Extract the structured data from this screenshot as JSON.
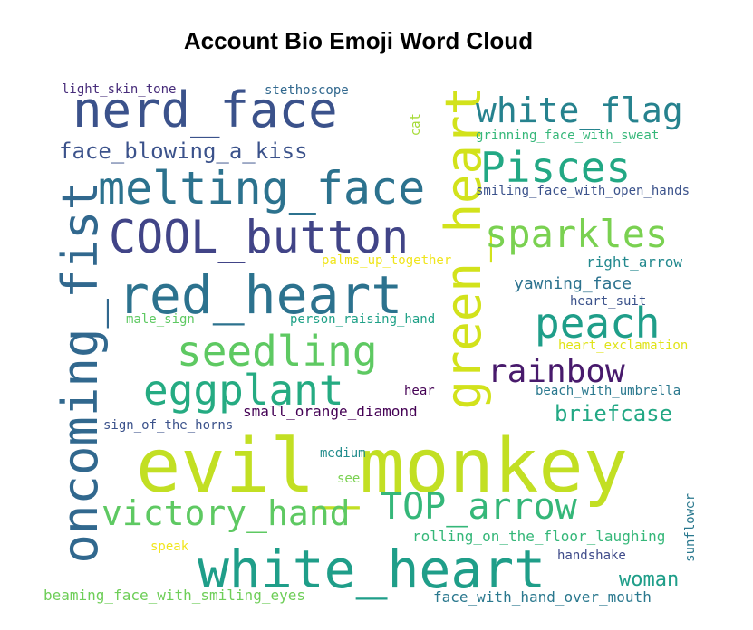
{
  "title": "Account Bio Emoji Word Cloud",
  "words": [
    {
      "text": "evil_monkey",
      "color": "#c2df23"
    },
    {
      "text": "white_heart",
      "color": "#1f9e89"
    },
    {
      "text": "nerd_face",
      "color": "#3b528b"
    },
    {
      "text": "melting_face",
      "color": "#2c728e"
    },
    {
      "text": "COOL_button",
      "color": "#414487"
    },
    {
      "text": "red_heart",
      "color": "#2c728e"
    },
    {
      "text": "oncoming_fist",
      "color": "#31688e"
    },
    {
      "text": "green_heart",
      "color": "#d2e21b"
    },
    {
      "text": "white_flag",
      "color": "#26828e"
    },
    {
      "text": "Pisces",
      "color": "#22a884"
    },
    {
      "text": "sparkles",
      "color": "#7ad151"
    },
    {
      "text": "peach",
      "color": "#1f9e89"
    },
    {
      "text": "seedling",
      "color": "#5ec962"
    },
    {
      "text": "eggplant",
      "color": "#25ab82"
    },
    {
      "text": "rainbow",
      "color": "#481a6c"
    },
    {
      "text": "victory_hand",
      "color": "#5ec962"
    },
    {
      "text": "TOP_arrow",
      "color": "#35b779"
    },
    {
      "text": "face_blowing_a_kiss",
      "color": "#3b528b"
    },
    {
      "text": "briefcase",
      "color": "#22a884"
    },
    {
      "text": "woman",
      "color": "#1f9e89"
    },
    {
      "text": "light_skin_tone",
      "color": "#472c7a"
    },
    {
      "text": "stethoscope",
      "color": "#31688e"
    },
    {
      "text": "cat",
      "color": "#a5db36"
    },
    {
      "text": "grinning_face_with_sweat",
      "color": "#35b779"
    },
    {
      "text": "smiling_face_with_open_hands",
      "color": "#3b528b"
    },
    {
      "text": "palms_up_together",
      "color": "#f0e51c"
    },
    {
      "text": "right_arrow",
      "color": "#23898e"
    },
    {
      "text": "yawning_face",
      "color": "#2c728e"
    },
    {
      "text": "heart_suit",
      "color": "#3b528b"
    },
    {
      "text": "male_sign",
      "color": "#5ec962"
    },
    {
      "text": "person_raising_hand",
      "color": "#1fa187"
    },
    {
      "text": "heart_exclamation",
      "color": "#e0e318"
    },
    {
      "text": "hear",
      "color": "#440154"
    },
    {
      "text": "beach_with_umbrella",
      "color": "#2a788e"
    },
    {
      "text": "small_orange_diamond",
      "color": "#440154"
    },
    {
      "text": "sign_of_the_horns",
      "color": "#3b528b"
    },
    {
      "text": "medium",
      "color": "#228d8d"
    },
    {
      "text": "see",
      "color": "#7ad151"
    },
    {
      "text": "sunflower",
      "color": "#2a788e"
    },
    {
      "text": "rolling_on_the_floor_laughing",
      "color": "#35b779"
    },
    {
      "text": "speak",
      "color": "#f1e51d"
    },
    {
      "text": "handshake",
      "color": "#3e4a89"
    },
    {
      "text": "beaming_face_with_smiling_eyes",
      "color": "#6ece58"
    },
    {
      "text": "face_with_hand_over_mouth",
      "color": "#2a788e"
    }
  ]
}
